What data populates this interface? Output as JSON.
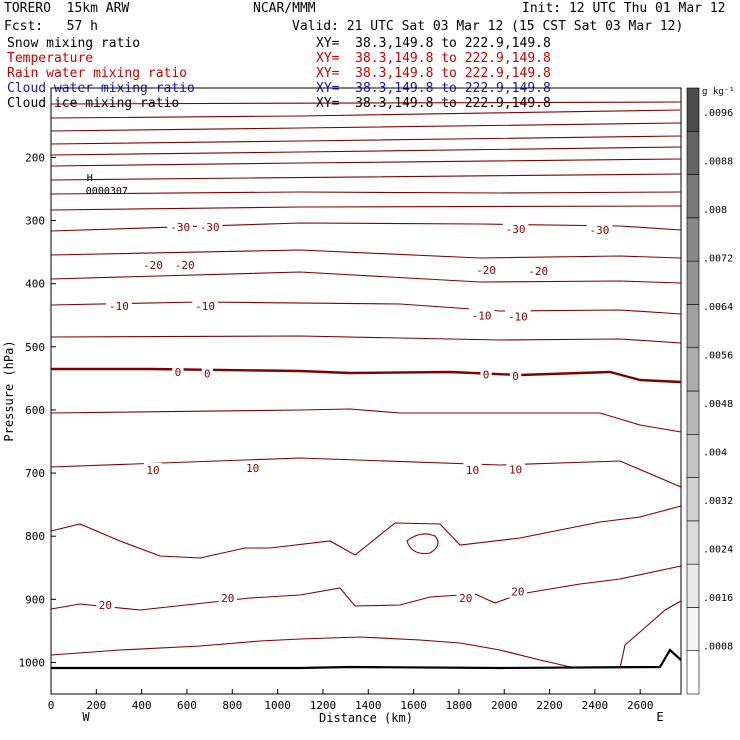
{
  "header": {
    "model": "TORERO  15km ARW",
    "center": "NCAR/MMM",
    "init": "Init: 12 UTC Thu 01 Mar 12",
    "fcst": "Fcst:   57 h",
    "valid": "Valid: 21 UTC Sat 03 Mar 12 (15 CST Sat 03 Mar 12)"
  },
  "legend": [
    {
      "label": "Snow mixing ratio",
      "xy": "XY=  38.3,149.8 to 222.9,149.8",
      "color": "#000000"
    },
    {
      "label": "Temperature",
      "xy": "XY=  38.3,149.8 to 222.9,149.8",
      "color": "#cc0000"
    },
    {
      "label": "Rain water mixing ratio",
      "xy": "XY=  38.3,149.8 to 222.9,149.8",
      "color": "#cc0000"
    },
    {
      "label": "Cloud water mixing ratio",
      "xy": "XY=  38.3,149.8 to 222.9,149.8",
      "color": "#1a1aaa"
    },
    {
      "label": "Cloud ice mixing ratio",
      "xy": "XY=  38.3,149.8 to 222.9,149.8",
      "color": "#000000"
    }
  ],
  "chart_data": {
    "type": "line",
    "xlabel": "Distance (km)",
    "ylabel": "Pressure (hPa)",
    "xlim": [
      0,
      2780
    ],
    "ylim": [
      1050,
      90
    ],
    "x_ticks": [
      "0",
      "200",
      "400",
      "600",
      "800",
      "1000",
      "1200",
      "1400",
      "1600",
      "1800",
      "2000",
      "2200",
      "2400",
      "2600"
    ],
    "y_ticks": [
      "200",
      "300",
      "400",
      "500",
      "600",
      "700",
      "800",
      "900",
      "1000"
    ],
    "west_label": "W",
    "east_label": "E",
    "max_marker": {
      "label": "H",
      "value": "0000307",
      "x": 180,
      "p": 237
    },
    "isotherm_labels": [
      {
        "text": "-30",
        "x": 570,
        "p": 310
      },
      {
        "text": "-30",
        "x": 700,
        "p": 310
      },
      {
        "text": "-30",
        "x": 2050,
        "p": 313
      },
      {
        "text": "-30",
        "x": 2420,
        "p": 315
      },
      {
        "text": "-20",
        "x": 450,
        "p": 370
      },
      {
        "text": "-20",
        "x": 590,
        "p": 370
      },
      {
        "text": "-20",
        "x": 1920,
        "p": 378
      },
      {
        "text": "-20",
        "x": 2150,
        "p": 380
      },
      {
        "text": "-10",
        "x": 300,
        "p": 435
      },
      {
        "text": "-10",
        "x": 680,
        "p": 435
      },
      {
        "text": "-10",
        "x": 1900,
        "p": 450
      },
      {
        "text": "-10",
        "x": 2060,
        "p": 452
      },
      {
        "text": "0",
        "x": 560,
        "p": 540
      },
      {
        "text": "0",
        "x": 690,
        "p": 542
      },
      {
        "text": "0",
        "x": 1920,
        "p": 544
      },
      {
        "text": "0",
        "x": 2050,
        "p": 546
      },
      {
        "text": "10",
        "x": 450,
        "p": 695
      },
      {
        "text": "10",
        "x": 890,
        "p": 692
      },
      {
        "text": "10",
        "x": 1860,
        "p": 695
      },
      {
        "text": "10",
        "x": 2050,
        "p": 694
      },
      {
        "text": "20",
        "x": 240,
        "p": 909
      },
      {
        "text": "20",
        "x": 780,
        "p": 898
      },
      {
        "text": "20",
        "x": 1830,
        "p": 898
      },
      {
        "text": "20",
        "x": 2060,
        "p": 888
      }
    ],
    "colorbar": {
      "unit": "g kg⁻¹",
      "min": 0,
      "max": 0.01,
      "tick_labels": [
        ".0008",
        ".0016",
        ".0024",
        ".0032",
        ".004",
        ".0048",
        ".0056",
        ".0064",
        ".0072",
        ".008",
        ".0088",
        ".0096"
      ],
      "colors": [
        "#ffffff",
        "#f4f4f4",
        "#e8e8e8",
        "#dcdcdc",
        "#d0d0d0",
        "#c4c4c4",
        "#b8b8b8",
        "#acacac",
        "#a0a0a0",
        "#949494",
        "#888888",
        "#787878",
        "#646464",
        "#4c4c4c"
      ]
    }
  }
}
